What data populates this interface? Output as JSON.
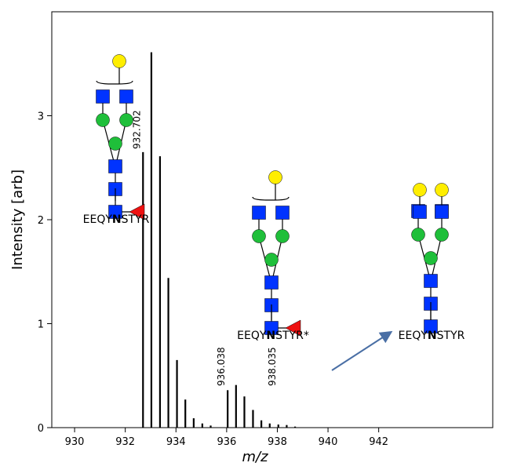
{
  "chart_data": {
    "type": "stick",
    "xlabel": "m/z",
    "ylabel": "Intensity [arb]",
    "xlim": [
      929.1,
      946.5
    ],
    "ylim": [
      0,
      4.0
    ],
    "xticks": [
      930,
      932,
      934,
      936,
      938,
      940,
      942
    ],
    "yticks": [
      0,
      1,
      2,
      3
    ],
    "color": "#000000",
    "x": [
      932.7,
      933.03,
      933.37,
      933.7,
      934.04,
      934.37,
      934.7,
      935.04,
      935.37,
      936.04,
      936.37,
      936.7,
      937.04,
      937.37,
      937.7,
      938.04,
      938.37,
      938.7
    ],
    "values": [
      2.65,
      3.61,
      2.61,
      1.44,
      0.65,
      0.27,
      0.09,
      0.04,
      0.02,
      0.36,
      0.41,
      0.3,
      0.17,
      0.07,
      0.04,
      0.03,
      0.025,
      0.01
    ],
    "annotations": [
      {
        "text": "932.702",
        "x": 932.7
      },
      {
        "text": "936.038",
        "x": 936.04
      },
      {
        "text": "938.035",
        "x": 938.04
      }
    ],
    "glycans": [
      {
        "prefix": "EEQY",
        "site": "N",
        "suffix": "STYR"
      },
      {
        "prefix": "EEQY",
        "site": "N",
        "suffix": "STYR*"
      },
      {
        "prefix": "EEQY",
        "site": "N",
        "suffix": "STYR"
      }
    ]
  }
}
